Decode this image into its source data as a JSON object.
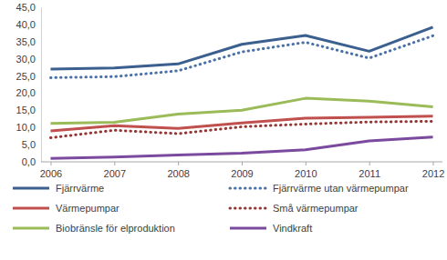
{
  "chart_data": {
    "type": "line",
    "categories": [
      "2006",
      "2007",
      "2008",
      "2009",
      "2010",
      "2011",
      "2012"
    ],
    "ylim": [
      0,
      45
    ],
    "yticks": [
      {
        "value": 0,
        "label": "0,0"
      },
      {
        "value": 5,
        "label": "5,0"
      },
      {
        "value": 10,
        "label": "10,0"
      },
      {
        "value": 15,
        "label": "15,0"
      },
      {
        "value": 20,
        "label": "20,0"
      },
      {
        "value": 25,
        "label": "25,0"
      },
      {
        "value": 30,
        "label": "30,0"
      },
      {
        "value": 35,
        "label": "35,0"
      },
      {
        "value": 40,
        "label": "40,0"
      },
      {
        "value": 45,
        "label": "45,0"
      }
    ],
    "grid": false,
    "legend": "bottom",
    "series": [
      {
        "name": "Fjärrvärme",
        "color": "#3b5f8e",
        "line_style": "solid",
        "values": [
          27.0,
          27.3,
          28.5,
          34.2,
          36.8,
          32.2,
          39.2
        ]
      },
      {
        "name": "Fjärrvärme utan värmepumpar",
        "color": "#4a70a8",
        "line_style": "dotted",
        "values": [
          24.5,
          24.8,
          26.5,
          32.0,
          34.8,
          30.2,
          36.7
        ]
      },
      {
        "name": "Värmepumpar",
        "color": "#c0504d",
        "line_style": "solid",
        "values": [
          9.0,
          10.5,
          9.7,
          11.3,
          12.7,
          13.0,
          13.3
        ]
      },
      {
        "name": "Små värmepumpar",
        "color": "#943634",
        "line_style": "dotted",
        "values": [
          7.0,
          9.2,
          8.2,
          10.2,
          11.0,
          11.6,
          11.8
        ]
      },
      {
        "name": "Biobränsle för elproduktion",
        "color": "#9bbb59",
        "line_style": "solid",
        "values": [
          11.2,
          11.5,
          13.9,
          15.0,
          18.5,
          17.7,
          16.0
        ]
      },
      {
        "name": "Vindkraft",
        "color": "#7b4a9e",
        "line_style": "solid",
        "values": [
          1.0,
          1.4,
          2.0,
          2.5,
          3.5,
          6.1,
          7.2
        ]
      }
    ]
  }
}
